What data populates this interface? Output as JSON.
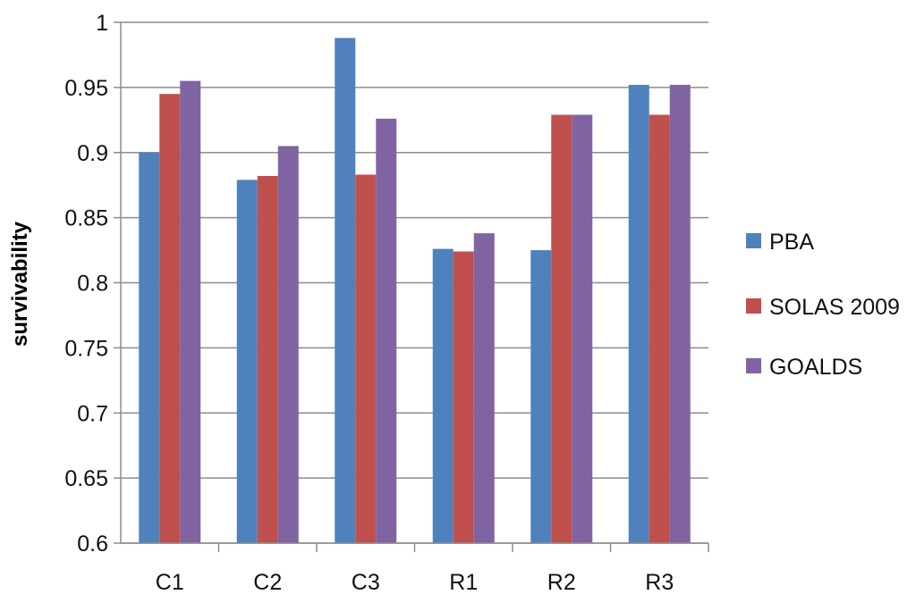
{
  "chart_data": {
    "type": "bar",
    "title": "",
    "xlabel": "",
    "ylabel": "survivability",
    "categories": [
      "C1",
      "C2",
      "C3",
      "R1",
      "R2",
      "R3"
    ],
    "series": [
      {
        "name": "PBA",
        "color": "#4f81bd",
        "values": [
          0.9,
          0.879,
          0.988,
          0.826,
          0.825,
          0.952
        ]
      },
      {
        "name": "SOLAS 2009",
        "color": "#c0504d",
        "values": [
          0.945,
          0.882,
          0.883,
          0.824,
          0.929,
          0.929
        ]
      },
      {
        "name": "GOALDS",
        "color": "#8064a2",
        "values": [
          0.955,
          0.905,
          0.926,
          0.838,
          0.929,
          0.952
        ]
      }
    ],
    "ylim": [
      0.6,
      1
    ],
    "yticks": [
      "0.6",
      "0.65",
      "0.7",
      "0.75",
      "0.8",
      "0.85",
      "0.9",
      "0.95",
      "1"
    ],
    "grid": true,
    "legend_position": "right"
  }
}
